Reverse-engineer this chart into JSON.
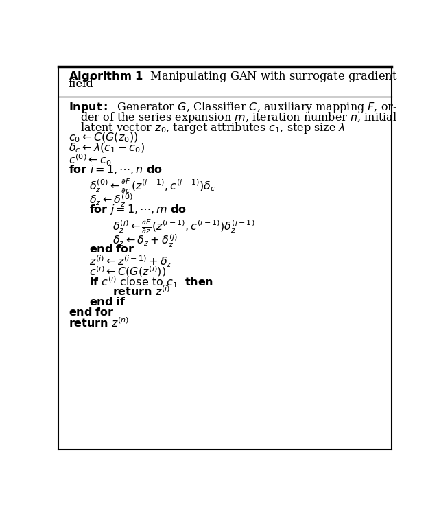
{
  "bg_color": "#ffffff",
  "border_color": "#000000",
  "fig_width": 6.4,
  "fig_height": 7.39
}
